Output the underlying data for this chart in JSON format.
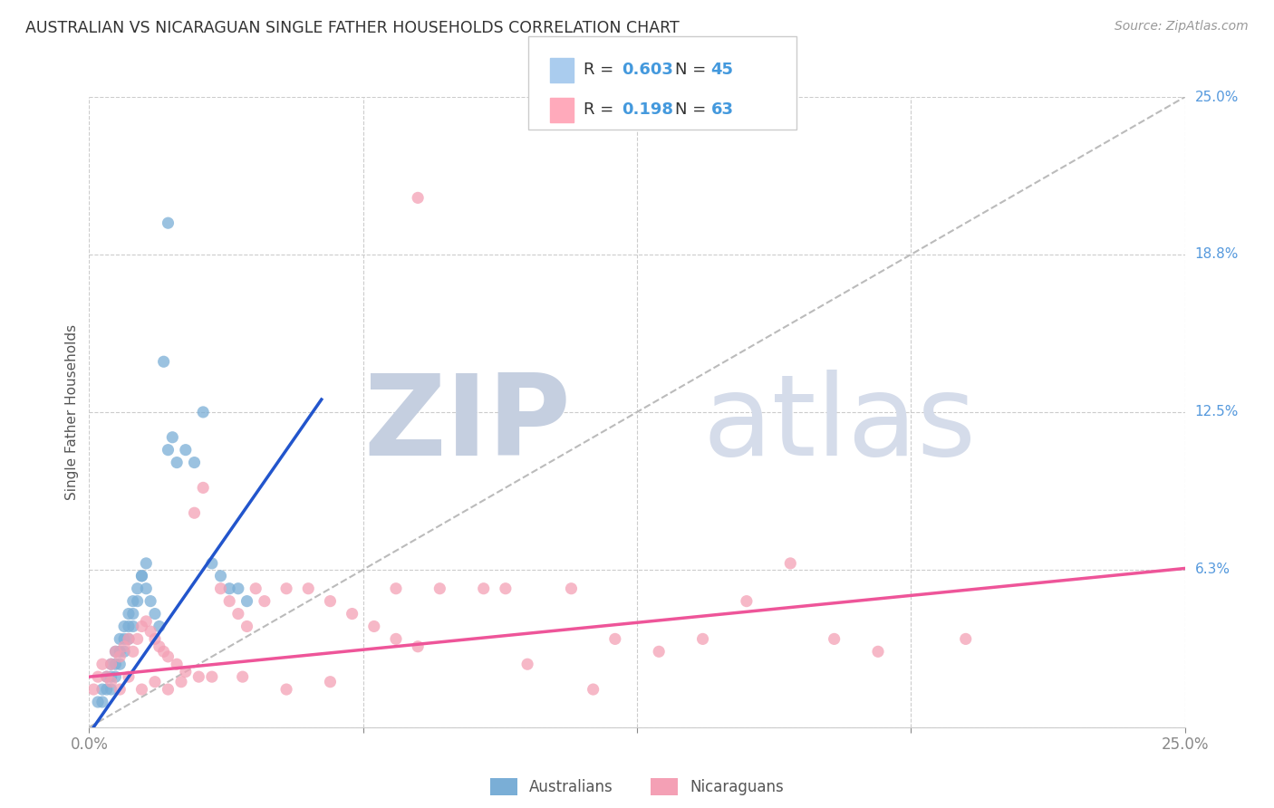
{
  "title": "AUSTRALIAN VS NICARAGUAN SINGLE FATHER HOUSEHOLDS CORRELATION CHART",
  "source": "Source: ZipAtlas.com",
  "ylabel": "Single Father Households",
  "xmin": 0.0,
  "xmax": 25.0,
  "ymin": 0.0,
  "ymax": 25.0,
  "aus_color": "#7aaed6",
  "nic_color": "#f4a0b5",
  "aus_line_color": "#2255cc",
  "nic_line_color": "#ee5599",
  "diagonal_color": "#bbbbbb",
  "grid_color": "#cccccc",
  "aus_r": 0.603,
  "aus_n": 45,
  "nic_r": 0.198,
  "nic_n": 63,
  "watermark_zip_color": "#c5cfe0",
  "watermark_atlas_color": "#d5dcea",
  "label_color": "#4499dd",
  "right_label_color": "#5599dd",
  "aus_x": [
    0.2,
    0.3,
    0.4,
    0.5,
    0.6,
    0.7,
    0.8,
    0.9,
    1.0,
    1.1,
    1.2,
    1.3,
    1.4,
    1.5,
    1.6,
    1.7,
    1.8,
    1.9,
    2.0,
    2.2,
    2.4,
    2.6,
    3.0,
    3.2,
    3.4,
    3.6,
    0.5,
    0.6,
    0.7,
    0.8,
    0.9,
    1.0,
    1.2,
    1.3,
    0.3,
    0.4,
    0.5,
    0.6,
    0.7,
    0.8,
    0.9,
    1.0,
    1.1,
    1.8,
    2.8
  ],
  "aus_y": [
    1.0,
    1.5,
    2.0,
    2.5,
    3.0,
    3.5,
    4.0,
    4.5,
    5.0,
    5.5,
    6.0,
    5.5,
    5.0,
    4.5,
    4.0,
    14.5,
    11.0,
    11.5,
    10.5,
    11.0,
    10.5,
    12.5,
    6.0,
    5.5,
    5.5,
    5.0,
    1.5,
    2.0,
    2.5,
    3.0,
    3.5,
    4.0,
    6.0,
    6.5,
    1.0,
    1.5,
    2.0,
    2.5,
    3.0,
    3.5,
    4.0,
    4.5,
    5.0,
    20.0,
    6.5
  ],
  "nic_x": [
    0.1,
    0.2,
    0.3,
    0.4,
    0.5,
    0.6,
    0.7,
    0.8,
    0.9,
    1.0,
    1.1,
    1.2,
    1.3,
    1.4,
    1.5,
    1.6,
    1.7,
    1.8,
    2.0,
    2.2,
    2.4,
    2.6,
    2.8,
    3.0,
    3.2,
    3.4,
    3.6,
    3.8,
    4.0,
    4.5,
    5.0,
    5.5,
    6.0,
    6.5,
    7.0,
    7.5,
    8.0,
    9.0,
    10.0,
    11.0,
    12.0,
    13.0,
    14.0,
    15.0,
    16.0,
    17.0,
    18.0,
    20.0,
    0.5,
    0.7,
    0.9,
    1.2,
    1.5,
    1.8,
    2.1,
    2.5,
    3.5,
    4.5,
    5.5,
    7.0,
    9.5,
    11.5,
    7.5
  ],
  "nic_y": [
    1.5,
    2.0,
    2.5,
    2.0,
    2.5,
    3.0,
    2.8,
    3.2,
    3.5,
    3.0,
    3.5,
    4.0,
    4.2,
    3.8,
    3.5,
    3.2,
    3.0,
    2.8,
    2.5,
    2.2,
    8.5,
    9.5,
    2.0,
    5.5,
    5.0,
    4.5,
    4.0,
    5.5,
    5.0,
    5.5,
    5.5,
    5.0,
    4.5,
    4.0,
    3.5,
    3.2,
    5.5,
    5.5,
    2.5,
    5.5,
    3.5,
    3.0,
    3.5,
    5.0,
    6.5,
    3.5,
    3.0,
    3.5,
    1.8,
    1.5,
    2.0,
    1.5,
    1.8,
    1.5,
    1.8,
    2.0,
    2.0,
    1.5,
    1.8,
    5.5,
    5.5,
    1.5,
    21.0
  ]
}
